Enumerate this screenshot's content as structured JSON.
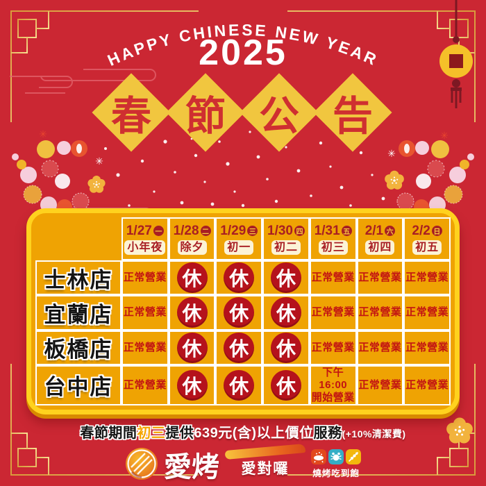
{
  "header": {
    "arc_text": "HAPPY CHINESE NEW YEAR",
    "year": "2025",
    "title_chars": [
      "春",
      "節",
      "公",
      "告"
    ]
  },
  "schedule": {
    "columns": [
      {
        "date": "1/27",
        "weekday": "一",
        "label": "小年夜"
      },
      {
        "date": "1/28",
        "weekday": "二",
        "label": "除夕"
      },
      {
        "date": "1/29",
        "weekday": "三",
        "label": "初一"
      },
      {
        "date": "1/30",
        "weekday": "四",
        "label": "初二"
      },
      {
        "date": "1/31",
        "weekday": "五",
        "label": "初三"
      },
      {
        "date": "2/1",
        "weekday": "六",
        "label": "初四"
      },
      {
        "date": "2/2",
        "weekday": "日",
        "label": "初五"
      }
    ],
    "rows": [
      {
        "store": "士林店",
        "cells": [
          "正常營業",
          "休",
          "休",
          "休",
          "正常營業",
          "正常營業",
          "正常營業"
        ]
      },
      {
        "store": "宜蘭店",
        "cells": [
          "正常營業",
          "休",
          "休",
          "休",
          "正常營業",
          "正常營業",
          "正常營業"
        ]
      },
      {
        "store": "板橋店",
        "cells": [
          "正常營業",
          "休",
          "休",
          "休",
          "正常營業",
          "正常營業",
          "正常營業"
        ]
      },
      {
        "store": "台中店",
        "cells": [
          "正常營業",
          "休",
          "休",
          "休",
          "下午16:00\n開始營業",
          "正常營業",
          "正常營業"
        ]
      }
    ]
  },
  "notice": {
    "part1": "春節期間",
    "part2": "初三",
    "part3": "提供",
    "part4": "639元(含)以上價位",
    "part5": "服務",
    "part6": "(+10%清潔費)"
  },
  "footer": {
    "brand_main": "愛烤",
    "brand_sub": "愛對囉",
    "tagline": "燒烤吃到飽",
    "icons": [
      "grill-icon",
      "crab-icon",
      "skewer-icon"
    ]
  },
  "colors": {
    "background": "#CB2733",
    "panel": "#EFA303",
    "panel_border": "#FFD21E",
    "diamond_yellow": "#F1C63F",
    "title_red": "#CF2F30",
    "date_red": "#A81E23",
    "status_red": "#C21313",
    "rest_badge_red": "#B5121C",
    "cream_label": "#FCF3D6",
    "gold_frame": "#E8B54A"
  }
}
